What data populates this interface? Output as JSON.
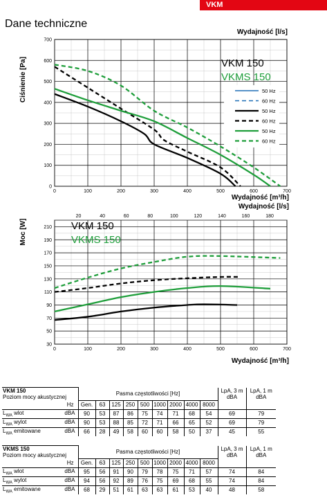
{
  "badge": "VKM",
  "heading": "Dane techniczne",
  "chart_data": [
    {
      "type": "line",
      "title_lines": [
        "VKM 150",
        "VKMS 150"
      ],
      "title_colors": [
        "#000000",
        "#1e9e3a"
      ],
      "xlabel": "Wydajność [m³/h]",
      "x2label": "Wydajność [l/s]",
      "ylabel": "Ciśnienie [Pa]",
      "xlim": [
        0,
        700
      ],
      "ylim": [
        0,
        700
      ],
      "xticks": [
        0,
        100,
        200,
        300,
        400,
        500,
        600,
        700
      ],
      "yticks": [
        0,
        100,
        200,
        300,
        400,
        500,
        600,
        700
      ],
      "legend": [
        "50 Hz",
        "60 Hz",
        "50 Hz",
        "60 Hz",
        "50 Hz",
        "60 Hz"
      ],
      "series": [
        {
          "model": "VKM 150",
          "freq": "50 Hz",
          "color": "#000000",
          "dash": false,
          "x": [
            0,
            100,
            200,
            270,
            300,
            400,
            500,
            545
          ],
          "y": [
            440,
            380,
            310,
            250,
            200,
            135,
            60,
            0
          ]
        },
        {
          "model": "VKM 150",
          "freq": "60 Hz",
          "color": "#000000",
          "dash": true,
          "x": [
            0,
            100,
            200,
            300,
            330,
            400,
            500,
            560
          ],
          "y": [
            570,
            470,
            370,
            270,
            220,
            165,
            90,
            0
          ]
        },
        {
          "model": "VKMS 150",
          "freq": "50 Hz",
          "color": "#1e9e3a",
          "dash": false,
          "x": [
            0,
            100,
            200,
            300,
            400,
            500,
            600,
            650
          ],
          "y": [
            465,
            410,
            360,
            310,
            230,
            150,
            55,
            0
          ]
        },
        {
          "model": "VKMS 150",
          "freq": "60 Hz",
          "color": "#1e9e3a",
          "dash": true,
          "x": [
            0,
            100,
            200,
            300,
            400,
            500,
            600,
            680
          ],
          "y": [
            580,
            550,
            480,
            360,
            280,
            190,
            90,
            0
          ]
        }
      ]
    },
    {
      "type": "line",
      "title_lines": [
        "VKM 150",
        "VKMS 150"
      ],
      "title_colors": [
        "#000000",
        "#1e9e3a"
      ],
      "xlabel": "Wydajność [m³/h]",
      "x2label": "Wydajność [l/s]",
      "ylabel": "Moc [W]",
      "xlim": [
        0,
        700
      ],
      "ylim": [
        30,
        220
      ],
      "xticks": [
        0,
        100,
        200,
        300,
        400,
        500,
        600,
        700
      ],
      "x2ticks": [
        20,
        40,
        60,
        80,
        100,
        120,
        140,
        160,
        180
      ],
      "yticks": [
        30,
        50,
        70,
        90,
        110,
        130,
        150,
        170,
        190,
        210
      ],
      "series": [
        {
          "model": "VKM 150",
          "freq": "50 Hz",
          "color": "#000000",
          "dash": false,
          "x": [
            0,
            100,
            200,
            300,
            400,
            450,
            550
          ],
          "y": [
            67,
            72,
            80,
            86,
            90,
            91,
            90
          ]
        },
        {
          "model": "VKM 150",
          "freq": "60 Hz",
          "color": "#000000",
          "dash": true,
          "x": [
            0,
            100,
            200,
            300,
            400,
            500,
            560
          ],
          "y": [
            110,
            116,
            123,
            128,
            131,
            133,
            133
          ]
        },
        {
          "model": "VKMS 150",
          "freq": "50 Hz",
          "color": "#1e9e3a",
          "dash": false,
          "x": [
            0,
            100,
            200,
            300,
            400,
            500,
            650
          ],
          "y": [
            80,
            91,
            102,
            110,
            116,
            119,
            115
          ]
        },
        {
          "model": "VKMS 150",
          "freq": "60 Hz",
          "color": "#1e9e3a",
          "dash": true,
          "x": [
            0,
            100,
            200,
            300,
            400,
            500,
            680
          ],
          "y": [
            116,
            132,
            146,
            156,
            164,
            165,
            162
          ]
        }
      ]
    }
  ],
  "tables": [
    {
      "title": "VKM 150",
      "subtitle": "Poziom mocy akustycznej",
      "band_header": "Pasma częstotliwości [Hz]",
      "lpa3_header": [
        "LpA, 3 m",
        "dBA"
      ],
      "lpa1_header": [
        "LpA, 1 m",
        "dBA"
      ],
      "hz_label": "Hz",
      "columns": [
        "Gen.",
        "63",
        "125",
        "250",
        "500",
        "1000",
        "2000",
        "4000",
        "8000"
      ],
      "rows": [
        {
          "label": "wlot",
          "unit": "dBA",
          "values": [
            "90",
            "53",
            "87",
            "86",
            "75",
            "74",
            "71",
            "68",
            "54"
          ],
          "lpa3": "69",
          "lpa1": "79"
        },
        {
          "label": "wylot",
          "unit": "dBA",
          "values": [
            "90",
            "53",
            "88",
            "85",
            "72",
            "71",
            "66",
            "65",
            "52"
          ],
          "lpa3": "69",
          "lpa1": "79"
        },
        {
          "label": "emitowane",
          "unit": "dBA",
          "values": [
            "66",
            "28",
            "49",
            "58",
            "60",
            "60",
            "58",
            "50",
            "37"
          ],
          "lpa3": "45",
          "lpa1": "55"
        }
      ]
    },
    {
      "title": "VKMS 150",
      "subtitle": "Poziom mocy akustycznej",
      "band_header": "Pasma częstotliwości [Hz]",
      "lpa3_header": [
        "LpA, 3 m",
        "dBA"
      ],
      "lpa1_header": [
        "LpA, 1 m",
        "dBA"
      ],
      "hz_label": "Hz",
      "columns": [
        "Gen.",
        "63",
        "125",
        "250",
        "500",
        "1000",
        "2000",
        "4000",
        "8000"
      ],
      "rows": [
        {
          "label": "wlot",
          "unit": "dBA",
          "values": [
            "95",
            "56",
            "91",
            "90",
            "79",
            "78",
            "75",
            "71",
            "57"
          ],
          "lpa3": "74",
          "lpa1": "84"
        },
        {
          "label": "wylot",
          "unit": "dBA",
          "values": [
            "94",
            "56",
            "92",
            "89",
            "76",
            "75",
            "69",
            "68",
            "55"
          ],
          "lpa3": "74",
          "lpa1": "84"
        },
        {
          "label": "emitowane",
          "unit": "dBA",
          "values": [
            "68",
            "29",
            "51",
            "61",
            "63",
            "63",
            "61",
            "53",
            "40"
          ],
          "lpa3": "48",
          "lpa1": "58"
        }
      ]
    }
  ],
  "lwa_prefix": "L",
  "lwa_sub": "WA"
}
